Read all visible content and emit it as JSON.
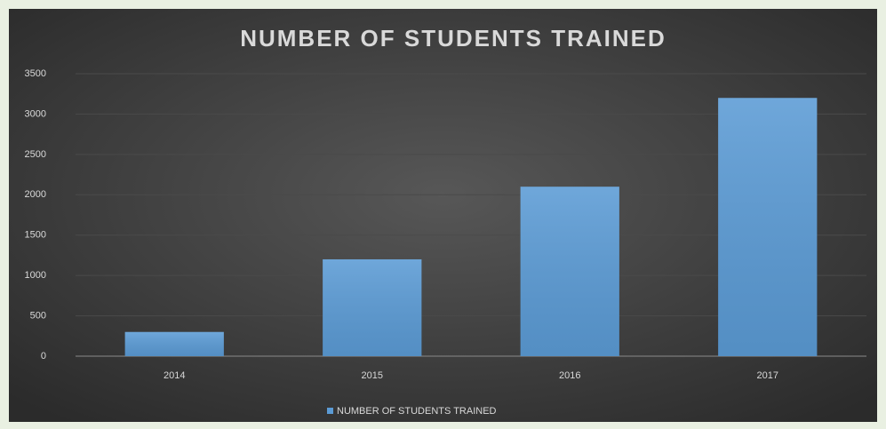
{
  "chart_data": {
    "type": "bar",
    "title": "NUMBER OF STUDENTS TRAINED",
    "categories": [
      "2014",
      "2015",
      "2016",
      "2017"
    ],
    "series": [
      {
        "name": "NUMBER OF STUDENTS TRAINED",
        "color": "#5b9bd5",
        "values": [
          300,
          1200,
          2100,
          3200
        ]
      }
    ],
    "ylim": [
      0,
      3500
    ],
    "yticks": [
      0,
      500,
      1000,
      1500,
      2000,
      2500,
      3000,
      3500
    ],
    "grid": true,
    "legend": "bottom"
  }
}
